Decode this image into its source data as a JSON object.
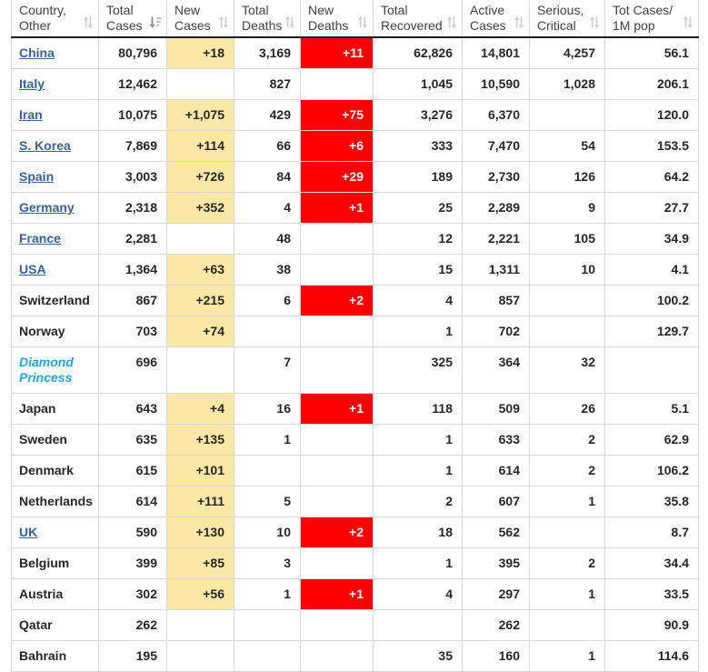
{
  "colors": {
    "country_link": "#35639f",
    "cruise_ship_name": "#21a5de",
    "new_cases_bg": "#FBE8A6",
    "new_deaths_bg": "#FF0000",
    "new_deaths_text": "#FFFFFF",
    "header_text": "#3d4148",
    "cell_text": "#262626",
    "border": "#d8d8d8",
    "header_bottom_border": "#1f1f1f",
    "sort_icon_inactive": "#c9cdd2",
    "sort_icon_active": "#8a8a8a"
  },
  "icons": {
    "header_unsorted": "sort-updown-icon",
    "header_active_desc": "sort-amount-desc-icon"
  },
  "table": {
    "columns": [
      {
        "key": "country",
        "label": "Country, Other",
        "lines": [
          "Country,",
          "Other"
        ],
        "sort": "unsorted",
        "align": "left"
      },
      {
        "key": "total_cases",
        "label": "Total Cases",
        "lines": [
          "Total",
          "Cases"
        ],
        "sort": "desc",
        "align": "right"
      },
      {
        "key": "new_cases",
        "label": "New Cases",
        "lines": [
          "New",
          "Cases"
        ],
        "sort": "unsorted",
        "align": "right"
      },
      {
        "key": "total_deaths",
        "label": "Total Deaths",
        "lines": [
          "Total",
          "Deaths"
        ],
        "sort": "unsorted",
        "align": "right"
      },
      {
        "key": "new_deaths",
        "label": "New Deaths",
        "lines": [
          "New",
          "Deaths"
        ],
        "sort": "unsorted",
        "align": "right"
      },
      {
        "key": "total_recovered",
        "label": "Total Recovered",
        "lines": [
          "Total",
          "Recovered"
        ],
        "sort": "unsorted",
        "align": "right"
      },
      {
        "key": "active_cases",
        "label": "Active Cases",
        "lines": [
          "Active",
          "Cases"
        ],
        "sort": "unsorted",
        "align": "right"
      },
      {
        "key": "serious_critical",
        "label": "Serious, Critical",
        "lines": [
          "Serious,",
          "Critical"
        ],
        "sort": "unsorted",
        "align": "right"
      },
      {
        "key": "cases_per_1m",
        "label": "Tot Cases/ 1M pop",
        "lines": [
          "Tot Cases/",
          "1M pop"
        ],
        "sort": "unsorted",
        "align": "right"
      }
    ],
    "rows": [
      {
        "country": "China",
        "country_style": "link",
        "total_cases": "80,796",
        "new_cases": "+18",
        "total_deaths": "3,169",
        "new_deaths": "+11",
        "total_recovered": "62,826",
        "active_cases": "14,801",
        "serious_critical": "4,257",
        "cases_per_1m": "56.1"
      },
      {
        "country": "Italy",
        "country_style": "link",
        "total_cases": "12,462",
        "new_cases": "",
        "total_deaths": "827",
        "new_deaths": "",
        "total_recovered": "1,045",
        "active_cases": "10,590",
        "serious_critical": "1,028",
        "cases_per_1m": "206.1"
      },
      {
        "country": "Iran",
        "country_style": "link",
        "total_cases": "10,075",
        "new_cases": "+1,075",
        "total_deaths": "429",
        "new_deaths": "+75",
        "total_recovered": "3,276",
        "active_cases": "6,370",
        "serious_critical": "",
        "cases_per_1m": "120.0"
      },
      {
        "country": "S. Korea",
        "country_style": "link",
        "total_cases": "7,869",
        "new_cases": "+114",
        "total_deaths": "66",
        "new_deaths": "+6",
        "total_recovered": "333",
        "active_cases": "7,470",
        "serious_critical": "54",
        "cases_per_1m": "153.5"
      },
      {
        "country": "Spain",
        "country_style": "link",
        "total_cases": "3,003",
        "new_cases": "+726",
        "total_deaths": "84",
        "new_deaths": "+29",
        "total_recovered": "189",
        "active_cases": "2,730",
        "serious_critical": "126",
        "cases_per_1m": "64.2"
      },
      {
        "country": "Germany",
        "country_style": "link",
        "total_cases": "2,318",
        "new_cases": "+352",
        "total_deaths": "4",
        "new_deaths": "+1",
        "total_recovered": "25",
        "active_cases": "2,289",
        "serious_critical": "9",
        "cases_per_1m": "27.7"
      },
      {
        "country": "France",
        "country_style": "link",
        "total_cases": "2,281",
        "new_cases": "",
        "total_deaths": "48",
        "new_deaths": "",
        "total_recovered": "12",
        "active_cases": "2,221",
        "serious_critical": "105",
        "cases_per_1m": "34.9"
      },
      {
        "country": "USA",
        "country_style": "link",
        "total_cases": "1,364",
        "new_cases": "+63",
        "total_deaths": "38",
        "new_deaths": "",
        "total_recovered": "15",
        "active_cases": "1,311",
        "serious_critical": "10",
        "cases_per_1m": "4.1"
      },
      {
        "country": "Switzerland",
        "country_style": "plain",
        "total_cases": "867",
        "new_cases": "+215",
        "total_deaths": "6",
        "new_deaths": "+2",
        "total_recovered": "4",
        "active_cases": "857",
        "serious_critical": "",
        "cases_per_1m": "100.2"
      },
      {
        "country": "Norway",
        "country_style": "plain",
        "total_cases": "703",
        "new_cases": "+74",
        "total_deaths": "",
        "new_deaths": "",
        "total_recovered": "1",
        "active_cases": "702",
        "serious_critical": "",
        "cases_per_1m": "129.7"
      },
      {
        "country": "Diamond Princess",
        "country_style": "ship",
        "total_cases": "696",
        "new_cases": "",
        "total_deaths": "7",
        "new_deaths": "",
        "total_recovered": "325",
        "active_cases": "364",
        "serious_critical": "32",
        "cases_per_1m": ""
      },
      {
        "country": "Japan",
        "country_style": "plain",
        "total_cases": "643",
        "new_cases": "+4",
        "total_deaths": "16",
        "new_deaths": "+1",
        "total_recovered": "118",
        "active_cases": "509",
        "serious_critical": "26",
        "cases_per_1m": "5.1"
      },
      {
        "country": "Sweden",
        "country_style": "plain",
        "total_cases": "635",
        "new_cases": "+135",
        "total_deaths": "1",
        "new_deaths": "",
        "total_recovered": "1",
        "active_cases": "633",
        "serious_critical": "2",
        "cases_per_1m": "62.9"
      },
      {
        "country": "Denmark",
        "country_style": "plain",
        "total_cases": "615",
        "new_cases": "+101",
        "total_deaths": "",
        "new_deaths": "",
        "total_recovered": "1",
        "active_cases": "614",
        "serious_critical": "2",
        "cases_per_1m": "106.2"
      },
      {
        "country": "Netherlands",
        "country_style": "plain",
        "total_cases": "614",
        "new_cases": "+111",
        "total_deaths": "5",
        "new_deaths": "",
        "total_recovered": "2",
        "active_cases": "607",
        "serious_critical": "1",
        "cases_per_1m": "35.8"
      },
      {
        "country": "UK",
        "country_style": "link",
        "total_cases": "590",
        "new_cases": "+130",
        "total_deaths": "10",
        "new_deaths": "+2",
        "total_recovered": "18",
        "active_cases": "562",
        "serious_critical": "",
        "cases_per_1m": "8.7"
      },
      {
        "country": "Belgium",
        "country_style": "plain",
        "total_cases": "399",
        "new_cases": "+85",
        "total_deaths": "3",
        "new_deaths": "",
        "total_recovered": "1",
        "active_cases": "395",
        "serious_critical": "2",
        "cases_per_1m": "34.4"
      },
      {
        "country": "Austria",
        "country_style": "plain",
        "total_cases": "302",
        "new_cases": "+56",
        "total_deaths": "1",
        "new_deaths": "+1",
        "total_recovered": "4",
        "active_cases": "297",
        "serious_critical": "1",
        "cases_per_1m": "33.5"
      },
      {
        "country": "Qatar",
        "country_style": "plain",
        "total_cases": "262",
        "new_cases": "",
        "total_deaths": "",
        "new_deaths": "",
        "total_recovered": "",
        "active_cases": "262",
        "serious_critical": "",
        "cases_per_1m": "90.9"
      },
      {
        "country": "Bahrain",
        "country_style": "plain",
        "total_cases": "195",
        "new_cases": "",
        "total_deaths": "",
        "new_deaths": "",
        "total_recovered": "35",
        "active_cases": "160",
        "serious_critical": "1",
        "cases_per_1m": "114.6"
      }
    ]
  }
}
